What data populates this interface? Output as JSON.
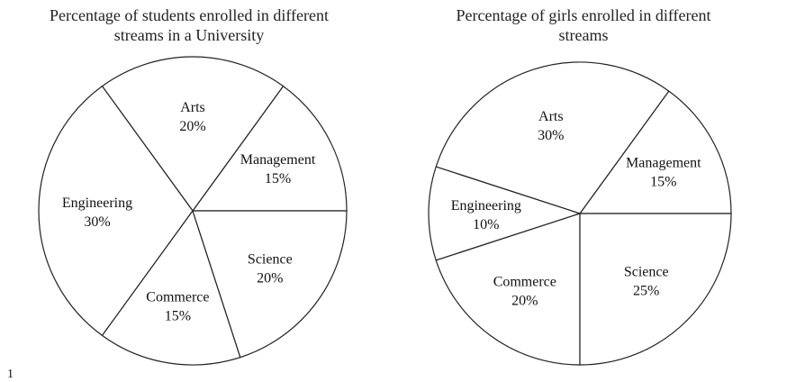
{
  "chart_data": [
    {
      "type": "pie",
      "title_lines": [
        "Percentage of students enrolled in different",
        "streams in a University"
      ],
      "categories": [
        "Management",
        "Arts",
        "Engineering",
        "Commerce",
        "Science"
      ],
      "values": [
        15,
        20,
        30,
        15,
        20
      ],
      "labels": [
        "15%",
        "20%",
        "30%",
        "15%",
        "20%"
      ]
    },
    {
      "type": "pie",
      "title_lines": [
        "Percentage of girls enrolled in different",
        "streams"
      ],
      "categories": [
        "Management",
        "Arts",
        "Engineering",
        "Commerce",
        "Science"
      ],
      "values": [
        15,
        30,
        10,
        20,
        25
      ],
      "labels": [
        "15%",
        "30%",
        "10%",
        "20%",
        "25%"
      ]
    }
  ],
  "stray_text": "1"
}
